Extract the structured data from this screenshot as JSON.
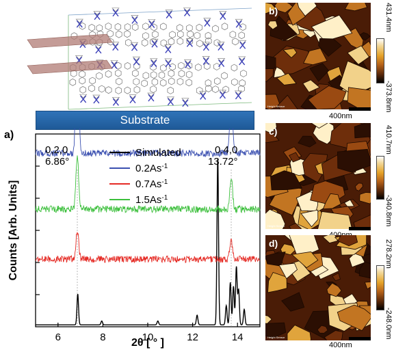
{
  "substrate_label": "Substrate",
  "panel_labels": {
    "a": "a)",
    "b": "b)",
    "c": "c)",
    "d": "d)"
  },
  "peak_annotations": [
    {
      "hkl": "0,2,0",
      "angle": "6.86°",
      "two_theta": 6.86
    },
    {
      "hkl": "0,4,0",
      "angle": "13.72°",
      "two_theta": 13.72
    }
  ],
  "afm": [
    {
      "label": "b)",
      "max": "431.4nm",
      "min": "-373.8nm",
      "scalebar": "400nm",
      "sensor": "Height Sensor"
    },
    {
      "label": "c)",
      "max": "410.7nm",
      "min": "-340.8nm",
      "scalebar": "400nm",
      "sensor": "Height Sensor"
    },
    {
      "label": "d)",
      "max": "278.2nm",
      "min": "-248.0nm",
      "scalebar": "400nm",
      "sensor": "Height Sensor"
    }
  ],
  "colors": {
    "simulated": "#000000",
    "rate_0_2": "#3a4fb0",
    "rate_0_7": "#e52a24",
    "rate_1_5": "#3cbf3c",
    "substrate": "#2a6db0"
  },
  "chart_data": {
    "type": "line",
    "title": "",
    "xlabel": "2θ [ ° ]",
    "ylabel": "Counts [Arb. Units]",
    "xlim": [
      5,
      15
    ],
    "x_ticks": [
      6,
      8,
      10,
      12,
      14
    ],
    "y_ticks_labeled": false,
    "legend": [
      "Simulated",
      "0.2As-1",
      "0.7As-1",
      "1.5As-1"
    ],
    "legend_placement": "top-center",
    "series": [
      {
        "name": "Simulated",
        "peaks": [
          {
            "x": 6.88,
            "height": 0.16
          },
          {
            "x": 13.12,
            "height": 0.86
          },
          {
            "x": 13.5,
            "height": 0.1
          },
          {
            "x": 13.68,
            "height": 0.22
          },
          {
            "x": 13.82,
            "height": 0.2
          },
          {
            "x": 13.95,
            "height": 0.3
          },
          {
            "x": 14.05,
            "height": 0.18
          },
          {
            "x": 14.3,
            "height": 0.08
          },
          {
            "x": 12.2,
            "height": 0.05
          },
          {
            "x": 7.95,
            "height": 0.02
          },
          {
            "x": 10.45,
            "height": 0.02
          }
        ]
      },
      {
        "name": "0.2As-1",
        "baseline": 0.9,
        "peaks": [
          {
            "x": 6.86,
            "height": 0.8
          },
          {
            "x": 13.72,
            "height": 0.33
          }
        ]
      },
      {
        "name": "0.7As-1",
        "baseline": 0.35,
        "peaks": [
          {
            "x": 6.86,
            "height": 0.15
          },
          {
            "x": 13.72,
            "height": 0.1
          }
        ]
      },
      {
        "name": "1.5As-1",
        "baseline": 0.61,
        "peaks": [
          {
            "x": 6.86,
            "height": 0.27
          },
          {
            "x": 13.72,
            "height": 0.16
          }
        ]
      }
    ]
  }
}
